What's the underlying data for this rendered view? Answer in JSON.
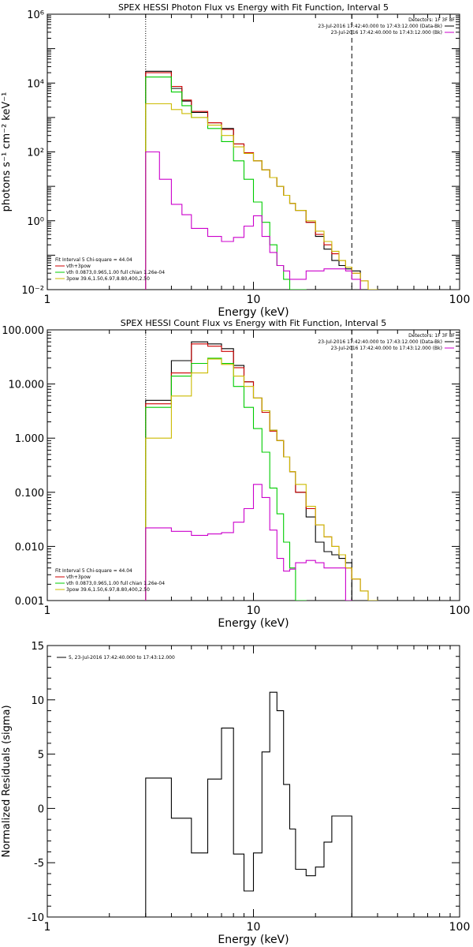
{
  "chart_data": [
    {
      "type": "line",
      "title": "SPEX HESSI Photon Flux vs Energy with Fit Function, Interval 5",
      "xlabel": "Energy (keV)",
      "ylabel": "photons s⁻¹ cm⁻² keV⁻¹",
      "xscale": "log",
      "yscale": "log",
      "xlim": [
        1,
        100
      ],
      "ylim": [
        0.01,
        1000000
      ],
      "xticks": [
        {
          "v": 1,
          "label": "1"
        },
        {
          "v": 10,
          "label": "10"
        },
        {
          "v": 100,
          "label": "100"
        }
      ],
      "yticks": [
        {
          "v": 0.01,
          "label": "10⁻²"
        },
        {
          "v": 1,
          "label": "10⁰"
        },
        {
          "v": 100,
          "label": "10²"
        },
        {
          "v": 10000,
          "label": "10⁴"
        },
        {
          "v": 1000000,
          "label": "10⁶"
        }
      ],
      "vlines": [
        {
          "x": 3.0,
          "style": "dotted"
        },
        {
          "x": 30.0,
          "style": "dashed"
        }
      ],
      "legend_top": {
        "header": "Detectors: 1F 3F 8F",
        "entries": [
          {
            "text": "23-Jul-2016 17:42:40.000 to 17:43:12.000 (Data-Bk)",
            "color": "#000000"
          },
          {
            "text": "23-Jul-2016 17:42:40.000 to 17:43:12.000 (Bk)",
            "color": "#cc00cc"
          }
        ]
      },
      "legend_bottom": {
        "header": "Fit Interval 5   Chi-square = 44.04",
        "entries": [
          {
            "text": "vth+3pow",
            "color": "#cc0000"
          },
          {
            "text": "vth 0.0873,0.965,1.00  full chian 1.26e-04",
            "color": "#00cc00"
          },
          {
            "text": "3pow 39.6,1.50,6.97,8.80,400,2.50",
            "color": "#ccbb00"
          }
        ]
      },
      "edges": [
        3.0,
        3.5,
        4.0,
        4.5,
        5.0,
        6.0,
        7.0,
        8.0,
        9.0,
        10.0,
        11.0,
        12.0,
        13.0,
        14.0,
        15.0,
        16.0,
        18.0,
        20.0,
        22.0,
        24.0,
        26.0,
        28.0,
        30.0,
        33.0,
        36.0,
        40.0
      ],
      "series": [
        {
          "name": "",
          "color": "#000000",
          "values": [
            22000,
            22000,
            7000,
            3000,
            1400,
            700,
            480,
            170,
            95,
            55,
            30,
            18,
            10,
            5.5,
            3.2,
            2.0,
            0.9,
            0.35,
            0.15,
            0.07,
            0.05,
            0.04,
            0.035,
            null,
            null
          ]
        },
        {
          "name": "",
          "color": "#cc0000",
          "values": [
            20000,
            20000,
            8000,
            3200,
            1500,
            700,
            450,
            170,
            95,
            55,
            30,
            18,
            10,
            5.5,
            3.2,
            2.0,
            0.9,
            0.4,
            0.2,
            0.11,
            0.07,
            0.045,
            0.03,
            0.018,
            0.01
          ]
        },
        {
          "name": "",
          "color": "#00cc00",
          "values": [
            15000,
            15000,
            5500,
            2200,
            1000,
            480,
            200,
            55,
            16,
            3.5,
            0.9,
            0.2,
            0.05,
            0.02,
            0.01,
            0.01,
            null,
            null,
            null,
            null,
            null,
            null,
            null,
            null,
            null
          ]
        },
        {
          "name": "",
          "color": "#ccbb00",
          "values": [
            2500,
            2500,
            1700,
            1300,
            1000,
            600,
            300,
            140,
            90,
            55,
            30,
            18,
            10,
            5.5,
            3.2,
            2.0,
            1.0,
            0.5,
            0.25,
            0.13,
            0.07,
            0.045,
            0.03,
            0.018,
            0.01
          ]
        },
        {
          "name": "",
          "color": "#cc00cc",
          "values": [
            100,
            16,
            3.0,
            1.5,
            0.6,
            0.35,
            0.25,
            0.33,
            0.7,
            1.4,
            0.35,
            0.12,
            0.05,
            0.035,
            0.02,
            0.02,
            0.035,
            0.035,
            0.04,
            0.04,
            0.04,
            0.035,
            0.02,
            null,
            null
          ]
        }
      ]
    },
    {
      "type": "line",
      "title": "SPEX HESSI Count Flux vs Energy with Fit Function, Interval 5",
      "xlabel": "Energy (keV)",
      "ylabel": "",
      "xscale": "log",
      "yscale": "log",
      "xlim": [
        1,
        100
      ],
      "ylim": [
        0.001,
        100
      ],
      "xticks": [
        {
          "v": 1,
          "label": "1"
        },
        {
          "v": 10,
          "label": "10"
        },
        {
          "v": 100,
          "label": "100"
        }
      ],
      "yticks": [
        {
          "v": 0.001,
          "label": "0.001"
        },
        {
          "v": 0.01,
          "label": "0.010"
        },
        {
          "v": 0.1,
          "label": "0.100"
        },
        {
          "v": 1,
          "label": "1.000"
        },
        {
          "v": 10,
          "label": "10.000"
        },
        {
          "v": 100,
          "label": "100.000"
        }
      ],
      "vlines": [
        {
          "x": 3.0,
          "style": "dotted"
        },
        {
          "x": 30.0,
          "style": "dashed"
        }
      ],
      "legend_top": {
        "header": "Detectors: 1F 3F 8F",
        "entries": [
          {
            "text": "23-Jul-2016 17:42:40.000 to 17:43:12.000 (Data-Bk)",
            "color": "#000000"
          },
          {
            "text": "23-Jul-2016 17:42:40.000 to 17:43:12.000 (Bk)",
            "color": "#cc00cc"
          }
        ]
      },
      "legend_bottom": {
        "header": "Fit Interval 5   Chi-square = 44.04",
        "entries": [
          {
            "text": "vth+3pow",
            "color": "#cc0000"
          },
          {
            "text": "vth 0.0873,0.965,1.00  full chian 1.26e-04",
            "color": "#00cc00"
          },
          {
            "text": "3pow 39.6,1.50,6.97,8.80,400,2.50",
            "color": "#ccbb00"
          }
        ]
      },
      "edges": [
        3.0,
        4.0,
        5.0,
        6.0,
        7.0,
        8.0,
        9.0,
        10.0,
        11.0,
        12.0,
        13.0,
        14.0,
        15.0,
        16.0,
        18.0,
        20.0,
        22.0,
        24.0,
        26.0,
        28.0,
        30.0,
        33.0,
        36.0,
        40.0
      ],
      "series": [
        {
          "name": "",
          "color": "#000000",
          "values": [
            5.0,
            27,
            60,
            55,
            45,
            22,
            11,
            5.5,
            3.2,
            1.4,
            0.9,
            0.45,
            0.24,
            0.1,
            0.035,
            0.012,
            0.008,
            0.007,
            0.006,
            0.005,
            null,
            null,
            null
          ]
        },
        {
          "name": "",
          "color": "#cc0000",
          "values": [
            4.3,
            16,
            55,
            50,
            40,
            20,
            11,
            5.5,
            3.0,
            1.35,
            0.9,
            0.45,
            0.24,
            0.1,
            0.05,
            0.025,
            0.015,
            0.01,
            0.007,
            0.004,
            0.0025,
            0.0015,
            null
          ]
        },
        {
          "name": "",
          "color": "#00cc00",
          "values": [
            3.7,
            14,
            24,
            30,
            24,
            9.0,
            3.7,
            1.5,
            0.55,
            0.12,
            0.04,
            0.012,
            0.004,
            0.001,
            null,
            null,
            null,
            null,
            null,
            null,
            null,
            null,
            null
          ]
        },
        {
          "name": "",
          "color": "#ccbb00",
          "values": [
            1.0,
            6.0,
            16,
            29,
            23,
            14,
            9.0,
            5.5,
            3.2,
            1.4,
            0.9,
            0.45,
            0.24,
            0.14,
            0.055,
            0.025,
            0.015,
            0.01,
            0.007,
            0.004,
            0.0025,
            0.0015,
            0.001
          ]
        },
        {
          "name": "",
          "color": "#cc00cc",
          "values": [
            0.022,
            0.019,
            0.016,
            0.017,
            0.018,
            0.028,
            0.05,
            0.14,
            0.08,
            0.02,
            0.006,
            0.0035,
            0.0038,
            0.005,
            0.0055,
            0.005,
            0.004,
            0.004,
            0.004,
            0.001,
            null,
            null,
            null
          ]
        }
      ]
    },
    {
      "type": "line",
      "title": "",
      "xlabel": "Energy (keV)",
      "ylabel": "Normalized Residuals (sigma)",
      "xscale": "log",
      "yscale": "linear",
      "xlim": [
        1,
        100
      ],
      "ylim": [
        -10,
        15
      ],
      "xticks": [
        {
          "v": 1,
          "label": "1"
        },
        {
          "v": 10,
          "label": "10"
        },
        {
          "v": 100,
          "label": "100"
        }
      ],
      "yticks": [
        {
          "v": -10,
          "label": "-10"
        },
        {
          "v": -5,
          "label": "-5"
        },
        {
          "v": 0,
          "label": "0"
        },
        {
          "v": 5,
          "label": "5"
        },
        {
          "v": 10,
          "label": "10"
        },
        {
          "v": 15,
          "label": "15"
        }
      ],
      "vlines": [],
      "legend_top": null,
      "legend_bottom": null,
      "legend_left": {
        "text": "5, 23-Jul-2016 17:42:40.000 to 17:43:12.000",
        "color": "#000000"
      },
      "edges": [
        3.0,
        4.0,
        5.0,
        6.0,
        7.0,
        8.0,
        9.0,
        10.0,
        11.0,
        12.0,
        13.0,
        14.0,
        15.0,
        16.0,
        18.0,
        20.0,
        22.0,
        24.0,
        26.0,
        28.0,
        30.0
      ],
      "baseline": -10,
      "series": [
        {
          "name": "",
          "color": "#000000",
          "values": [
            2.8,
            -0.9,
            -4.1,
            2.7,
            7.4,
            -4.2,
            -7.6,
            -4.1,
            5.2,
            10.7,
            9.0,
            2.2,
            -1.9,
            -5.6,
            -6.2,
            -5.4,
            -3.1,
            -0.7,
            -0.7,
            -0.7
          ]
        }
      ]
    }
  ]
}
